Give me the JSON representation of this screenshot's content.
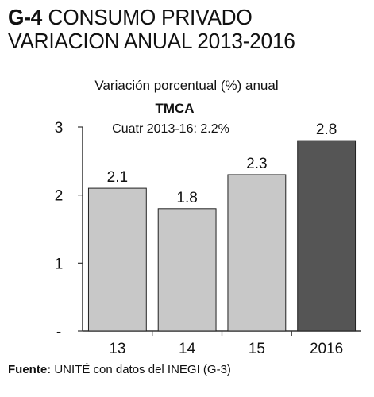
{
  "figure": {
    "id": "G-4",
    "title_line1": "CONSUMO PRIVADO",
    "title_line2": "VARIACION ANUAL 2013-2016"
  },
  "chart_data": {
    "type": "bar",
    "subtitle": "Variación porcentual (%) anual",
    "categories": [
      "13",
      "14",
      "15",
      "2016"
    ],
    "values": [
      2.1,
      1.8,
      2.3,
      2.8
    ],
    "value_labels": [
      "2.1",
      "1.8",
      "2.3",
      "2.8"
    ],
    "ylim": [
      0,
      3
    ],
    "yticks": [
      {
        "value": 0,
        "label": "-"
      },
      {
        "value": 1,
        "label": "1"
      },
      {
        "value": 2,
        "label": "2"
      },
      {
        "value": 3,
        "label": "3"
      }
    ],
    "bar_colors": [
      "#c8c8c8",
      "#c8c8c8",
      "#c8c8c8",
      "#555555"
    ],
    "annotation": {
      "title": "TMCA",
      "text": "Cuatr 2013-16:  2.2%"
    },
    "grid": false,
    "legend": "none"
  },
  "source": {
    "label": "Fuente:",
    "text": "UNITÉ con datos del INEGI (G-3)"
  }
}
